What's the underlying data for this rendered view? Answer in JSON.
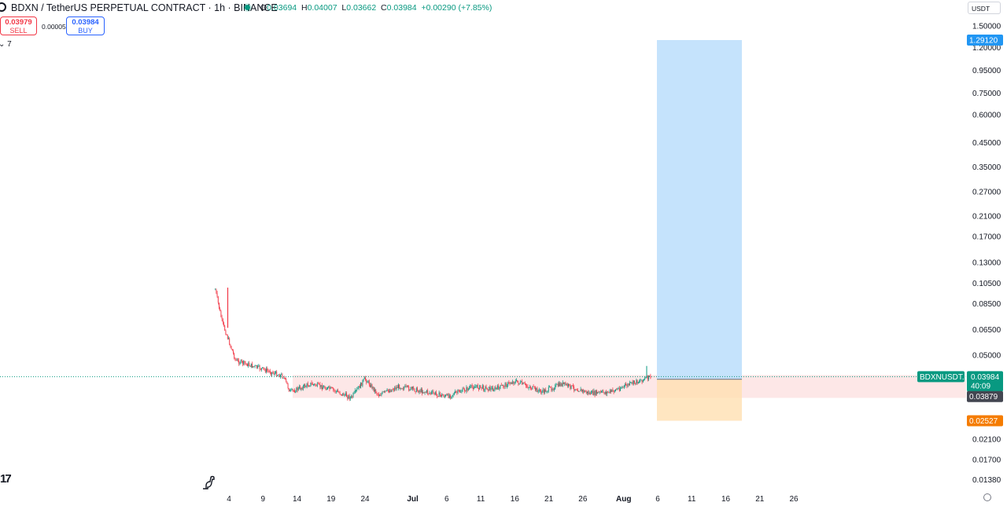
{
  "header": {
    "symbol_title": "BDXN / TetherUS PERPETUAL CONTRACT · 1h · BINANCE",
    "ohlc": {
      "o_label": "O",
      "o_value": "0.03694",
      "h_label": "H",
      "h_value": "0.04007",
      "l_label": "L",
      "l_value": "0.03662",
      "c_label": "C",
      "c_value": "0.03984",
      "change": "+0.00290 (+7.85%)"
    },
    "status_color": "#089981"
  },
  "trade": {
    "sell_price": "0.03979",
    "sell_label": "SELL",
    "spread": "0.00005",
    "buy_price": "0.03984",
    "buy_label": "BUY"
  },
  "indicators_toggle": "7",
  "currency_selector": "USDT",
  "colors": {
    "up": "#089981",
    "down": "#f23645",
    "profit_zone": "#bbdefb",
    "loss_zone": "#ffe0b2",
    "range_zone": "#fde3e3",
    "target_tag": "#2196f3",
    "stop_tag": "#f57c00"
  },
  "chart_data": {
    "type": "candlestick",
    "scale": "log",
    "price_axis_labels": [
      "1.50000",
      "1.20000",
      "0.95000",
      "0.75000",
      "0.60000",
      "0.45000",
      "0.35000",
      "0.27000",
      "0.21000",
      "0.17000",
      "0.13000",
      "0.10500",
      "0.08500",
      "0.06500",
      "0.05000",
      "0.02100",
      "0.01700",
      "0.01380"
    ],
    "time_axis_labels": [
      "4",
      "9",
      "14",
      "19",
      "24",
      "Jul",
      "6",
      "11",
      "16",
      "21",
      "26",
      "Aug",
      "6",
      "11",
      "16",
      "21",
      "26"
    ],
    "price_tags": [
      {
        "label": "1.29120",
        "kind": "target"
      },
      {
        "label": "BDXNUSDT.P",
        "kind": "symbol"
      },
      {
        "label": "0.03984",
        "kind": "last"
      },
      {
        "label": "40:09",
        "kind": "countdown"
      },
      {
        "label": "0.03879",
        "kind": "entry"
      },
      {
        "label": "0.02527",
        "kind": "stop"
      }
    ],
    "last_price": 0.03984,
    "position": {
      "side": "long",
      "entry": 0.03879,
      "target": 1.2912,
      "stop": 0.02527
    },
    "range_box": {
      "top": 0.0405,
      "bottom": 0.032
    },
    "series_outline": [
      {
        "date": "2025-06-02",
        "price": 0.098
      },
      {
        "date": "2025-06-03",
        "price": 0.07
      },
      {
        "date": "2025-06-05",
        "price": 0.047
      },
      {
        "date": "2025-06-09",
        "price": 0.043
      },
      {
        "date": "2025-06-12",
        "price": 0.04
      },
      {
        "date": "2025-06-13",
        "price": 0.034
      },
      {
        "date": "2025-06-16",
        "price": 0.037
      },
      {
        "date": "2025-06-19",
        "price": 0.035
      },
      {
        "date": "2025-06-22",
        "price": 0.032
      },
      {
        "date": "2025-06-24",
        "price": 0.039
      },
      {
        "date": "2025-06-26",
        "price": 0.033
      },
      {
        "date": "2025-06-29",
        "price": 0.036
      },
      {
        "date": "2025-07-03",
        "price": 0.034
      },
      {
        "date": "2025-07-06",
        "price": 0.0325
      },
      {
        "date": "2025-07-10",
        "price": 0.036
      },
      {
        "date": "2025-07-13",
        "price": 0.035
      },
      {
        "date": "2025-07-16",
        "price": 0.038
      },
      {
        "date": "2025-07-20",
        "price": 0.034
      },
      {
        "date": "2025-07-23",
        "price": 0.037
      },
      {
        "date": "2025-07-27",
        "price": 0.0335
      },
      {
        "date": "2025-07-30",
        "price": 0.034
      },
      {
        "date": "2025-08-02",
        "price": 0.037
      },
      {
        "date": "2025-08-05",
        "price": 0.0398
      }
    ]
  }
}
